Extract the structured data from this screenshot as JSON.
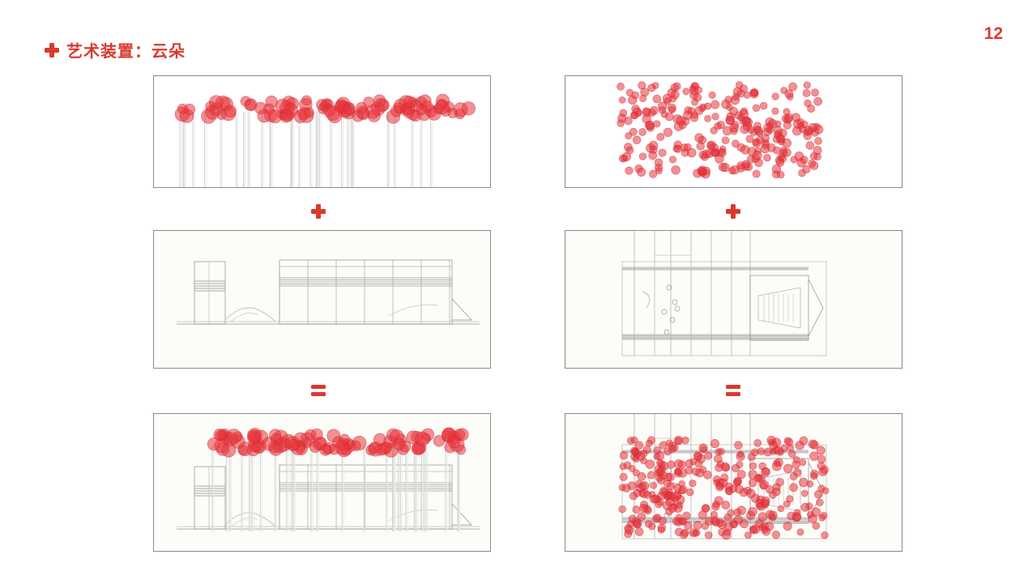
{
  "header": {
    "title": "艺术装置：云朵",
    "page_number": "12"
  },
  "colors": {
    "accent": "#d93a2f",
    "cloud_fill": "#e8343c",
    "line": "#8a8a8a"
  },
  "operators": {
    "plus_icon": "plus-icon",
    "equals_icon": "equals-icon"
  },
  "panels": [
    {
      "id": "cloud-elevation",
      "content": "cloud-elevation-drawing"
    },
    {
      "id": "cloud-plan",
      "content": "cloud-plan-drawing"
    },
    {
      "id": "building-elevation",
      "content": "building-elevation-drawing"
    },
    {
      "id": "building-plan",
      "content": "building-plan-drawing"
    },
    {
      "id": "combined-elevation",
      "content": "combined-elevation-drawing"
    },
    {
      "id": "combined-plan",
      "content": "combined-plan-drawing"
    }
  ]
}
